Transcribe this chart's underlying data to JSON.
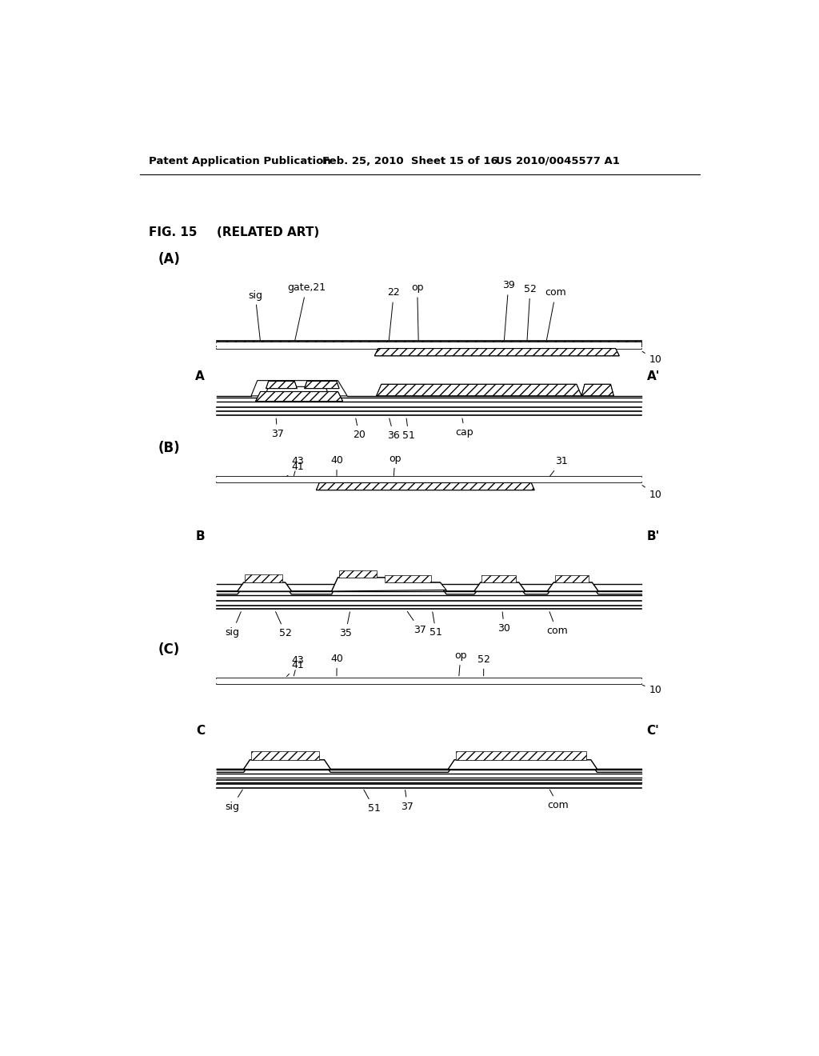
{
  "background_color": "#ffffff",
  "text_color": "#000000",
  "header_left": "Patent Application Publication",
  "header_mid": "Feb. 25, 2010  Sheet 15 of 16",
  "header_right": "US 2010/0045577 A1",
  "fig_title": "FIG. 15",
  "fig_subtitle": "(RELATED ART)"
}
